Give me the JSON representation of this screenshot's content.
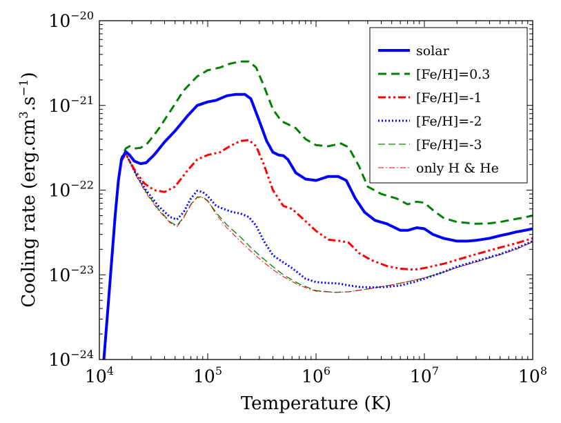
{
  "chart_data": {
    "type": "line",
    "title": "",
    "xlabel": "Temperature (K)",
    "ylabel_main": "Cooling rate (erg.cm",
    "ylabel_sup1": "3",
    "ylabel_mid": ".s",
    "ylabel_sup2": "−1",
    "ylabel_end": ")",
    "xscale": "log",
    "yscale": "log",
    "xlim": [
      10000,
      100000000
    ],
    "ylim": [
      1e-24,
      1e-20
    ],
    "grid": false,
    "legend_position": "top-right",
    "x_ticks": [
      {
        "base": "10",
        "exp": "4"
      },
      {
        "base": "10",
        "exp": "5"
      },
      {
        "base": "10",
        "exp": "6"
      },
      {
        "base": "10",
        "exp": "7"
      },
      {
        "base": "10",
        "exp": "8"
      }
    ],
    "y_ticks": [
      {
        "base": "10",
        "exp": "−24"
      },
      {
        "base": "10",
        "exp": "−23"
      },
      {
        "base": "10",
        "exp": "−22"
      },
      {
        "base": "10",
        "exp": "−21"
      },
      {
        "base": "10",
        "exp": "−20"
      }
    ],
    "series": [
      {
        "name": "solar",
        "color": "#0000ff",
        "dash": "solid",
        "width": 4,
        "x": [
          11000,
          12000,
          13000,
          14000,
          15000,
          16000,
          17500,
          19000,
          21000,
          24000,
          27000,
          32000,
          40000,
          50000,
          65000,
          80000,
          100000,
          120000,
          150000,
          180000,
          220000,
          250000,
          300000,
          350000,
          400000,
          450000,
          500000,
          550000,
          650000,
          800000,
          1000000,
          1300000,
          1600000,
          1900000,
          2300000,
          2800000,
          3500000,
          4500000,
          6000000,
          7000000,
          8500000,
          10000000,
          12000000,
          15000000,
          20000000,
          25000000,
          30000000,
          40000000,
          50000000,
          60000000,
          70000000,
          80000000,
          100000000
        ],
        "y": [
          1e-24,
          4e-24,
          1.5e-23,
          5e-23,
          1.3e-22,
          2.3e-22,
          2.85e-22,
          2.6e-22,
          2.2e-22,
          2.05e-22,
          2.1e-22,
          2.6e-22,
          3.7e-22,
          5e-22,
          7.5e-22,
          1e-21,
          1.1e-21,
          1.15e-21,
          1.3e-21,
          1.35e-21,
          1.35e-21,
          1.2e-21,
          6.5e-22,
          3.8e-22,
          2.8e-22,
          2.6e-22,
          2.55e-22,
          2.3e-22,
          1.6e-22,
          1.35e-22,
          1.3e-22,
          1.45e-22,
          1.45e-22,
          1.3e-22,
          8e-23,
          5.5e-23,
          4.4e-23,
          4e-23,
          3.35e-23,
          3.35e-23,
          3.6e-23,
          3.5e-23,
          3e-23,
          2.7e-23,
          2.5e-23,
          2.5e-23,
          2.55e-23,
          2.7e-23,
          2.9e-23,
          3.05e-23,
          3.2e-23,
          3.3e-23,
          3.5e-23
        ]
      },
      {
        "name": "[Fe/H]=0.3",
        "color": "#008000",
        "dash": "12,7",
        "width": 3,
        "x": [
          11000,
          12000,
          13000,
          14000,
          15000,
          16000,
          17500,
          19000,
          21000,
          24000,
          28000,
          35000,
          45000,
          60000,
          80000,
          100000,
          130000,
          160000,
          200000,
          240000,
          280000,
          330000,
          400000,
          480000,
          550000,
          650000,
          800000,
          1000000,
          1300000,
          1700000,
          2000000,
          2500000,
          3000000,
          4000000,
          5500000,
          7000000,
          8500000,
          10000000,
          12000000,
          15000000,
          20000000,
          30000000,
          40000000,
          50000000,
          60000000,
          80000000,
          100000000
        ],
        "y": [
          1e-24,
          4e-24,
          1.5e-23,
          5e-23,
          1.3e-22,
          2.4e-22,
          3.1e-22,
          3.3e-22,
          3.1e-22,
          3.15e-22,
          3.6e-22,
          5.2e-22,
          8.5e-22,
          1.5e-21,
          2.2e-21,
          2.6e-21,
          2.8e-21,
          3.1e-21,
          3.3e-21,
          3.3e-21,
          2.8e-21,
          1.7e-21,
          9e-22,
          6.5e-22,
          6e-22,
          5.4e-22,
          4e-22,
          3.4e-22,
          3.3e-22,
          3.55e-22,
          3.2e-22,
          1.9e-22,
          1.1e-22,
          9e-23,
          8e-23,
          6.8e-23,
          7.3e-23,
          7.1e-23,
          5.8e-23,
          4.7e-23,
          4.2e-23,
          4e-23,
          4.05e-23,
          4.2e-23,
          4.4e-23,
          4.7e-23,
          5e-23
        ]
      },
      {
        "name": "[Fe/H]=-1",
        "color": "#ff0000",
        "dash": "11,4,3,4,3,4",
        "width": 3,
        "x": [
          11000,
          12000,
          13000,
          14000,
          15000,
          16000,
          17500,
          19000,
          22000,
          26000,
          32000,
          40000,
          50000,
          65000,
          80000,
          100000,
          130000,
          160000,
          200000,
          240000,
          280000,
          330000,
          400000,
          500000,
          600000,
          800000,
          1000000,
          1300000,
          1700000,
          2000000,
          2500000,
          3200000,
          4500000,
          6000000,
          8000000,
          10000000,
          15000000,
          20000000,
          30000000,
          50000000,
          70000000,
          100000000
        ],
        "y": [
          1e-24,
          4e-24,
          1.5e-23,
          5e-23,
          1.3e-22,
          2.2e-22,
          2.7e-22,
          2.2e-22,
          1.6e-22,
          1.2e-22,
          1e-22,
          9.5e-23,
          1.1e-22,
          1.7e-22,
          2.3e-22,
          2.6e-22,
          2.8e-22,
          3.3e-22,
          3.8e-22,
          3.9e-22,
          3.3e-22,
          2e-22,
          1e-22,
          6.5e-23,
          6e-23,
          4.3e-23,
          3.3e-23,
          2.6e-23,
          2.5e-23,
          2.4e-23,
          1.8e-23,
          1.5e-23,
          1.27e-23,
          1.18e-23,
          1.15e-23,
          1.2e-23,
          1.35e-23,
          1.5e-23,
          1.75e-23,
          2.1e-23,
          2.35e-23,
          2.7e-23
        ]
      },
      {
        "name": "[Fe/H]=-2",
        "color": "#0000ff",
        "dash": "2,3",
        "width": 3,
        "x": [
          11000,
          12000,
          13000,
          14000,
          15000,
          16000,
          17500,
          19000,
          22000,
          27000,
          35000,
          45000,
          52000,
          60000,
          70000,
          80000,
          90000,
          100000,
          120000,
          140000,
          170000,
          200000,
          240000,
          280000,
          330000,
          400000,
          500000,
          600000,
          800000,
          1000000,
          1300000,
          1600000,
          2000000,
          2500000,
          3200000,
          4500000,
          6000000,
          8000000,
          10000000,
          15000000,
          20000000,
          30000000,
          50000000,
          70000000,
          100000000
        ],
        "y": [
          1e-24,
          4e-24,
          1.5e-23,
          5e-23,
          1.3e-22,
          2.2e-22,
          2.7e-22,
          2.2e-22,
          1.5e-22,
          1e-22,
          6.5e-23,
          4.8e-23,
          4.5e-23,
          5.5e-23,
          8e-23,
          9.8e-23,
          9.5e-23,
          8.5e-23,
          6.5e-23,
          6e-23,
          5.5e-23,
          5.3e-23,
          4.8e-23,
          3.8e-23,
          2.5e-23,
          1.7e-23,
          1.4e-23,
          1.2e-23,
          9e-24,
          8.2e-24,
          8e-24,
          7.9e-24,
          7.5e-24,
          7.2e-24,
          7.1e-24,
          7.2e-24,
          7.5e-24,
          8.2e-24,
          9e-24,
          1.08e-23,
          1.25e-23,
          1.45e-23,
          1.75e-23,
          2.05e-23,
          2.5e-23
        ]
      },
      {
        "name": "[Fe/H]=-3",
        "color": "#008000",
        "dash": "10,5",
        "width": 1.3,
        "x": [
          11000,
          12000,
          13000,
          14000,
          15000,
          16000,
          17500,
          19000,
          22000,
          27000,
          35000,
          45000,
          52000,
          60000,
          70000,
          80000,
          90000,
          100000,
          120000,
          150000,
          200000,
          250000,
          300000,
          400000,
          500000,
          700000,
          1000000,
          1500000,
          2000000,
          3000000,
          5000000,
          7000000,
          10000000,
          15000000,
          20000000,
          30000000,
          50000000,
          70000000,
          100000000
        ],
        "y": [
          1e-24,
          4e-24,
          1.5e-23,
          5e-23,
          1.3e-22,
          2.2e-22,
          2.75e-22,
          2.2e-22,
          1.5e-22,
          9.5e-23,
          6e-23,
          4.2e-23,
          3.8e-23,
          4.8e-23,
          6.8e-23,
          8.3e-23,
          8.3e-23,
          7.5e-23,
          5.4e-23,
          3.9e-23,
          2.8e-23,
          2.1e-23,
          1.7e-23,
          1.25e-23,
          1e-23,
          7.8e-24,
          6.5e-24,
          6.2e-24,
          6.3e-24,
          6.8e-24,
          7.6e-24,
          8.3e-24,
          9.2e-24,
          1.07e-23,
          1.22e-23,
          1.42e-23,
          1.73e-23,
          2e-23,
          2.45e-23
        ]
      },
      {
        "name": "only H & He",
        "color": "#ff0000",
        "dash": "8,3,2,3",
        "width": 1,
        "x": [
          11000,
          12000,
          13000,
          14000,
          15000,
          16000,
          17500,
          19000,
          22000,
          27000,
          35000,
          45000,
          52000,
          60000,
          70000,
          80000,
          90000,
          100000,
          120000,
          150000,
          200000,
          250000,
          300000,
          400000,
          500000,
          700000,
          1000000,
          1500000,
          2000000,
          3000000,
          5000000,
          7000000,
          10000000,
          15000000,
          20000000,
          30000000,
          50000000,
          70000000,
          100000000
        ],
        "y": [
          1e-24,
          4e-24,
          1.5e-23,
          5e-23,
          1.3e-22,
          2.2e-22,
          2.7e-22,
          2.15e-22,
          1.45e-22,
          9.2e-23,
          5.8e-23,
          4.1e-23,
          3.7e-23,
          4.7e-23,
          6.7e-23,
          8.2e-23,
          8.2e-23,
          7.4e-23,
          5.2e-23,
          3.6e-23,
          2.5e-23,
          1.9e-23,
          1.55e-23,
          1.15e-23,
          9.5e-24,
          7.5e-24,
          6.4e-24,
          6.2e-24,
          6.3e-24,
          6.8e-24,
          7.6e-24,
          8.3e-24,
          9.2e-24,
          1.07e-23,
          1.22e-23,
          1.42e-23,
          1.73e-23,
          2e-23,
          2.45e-23
        ]
      }
    ]
  }
}
